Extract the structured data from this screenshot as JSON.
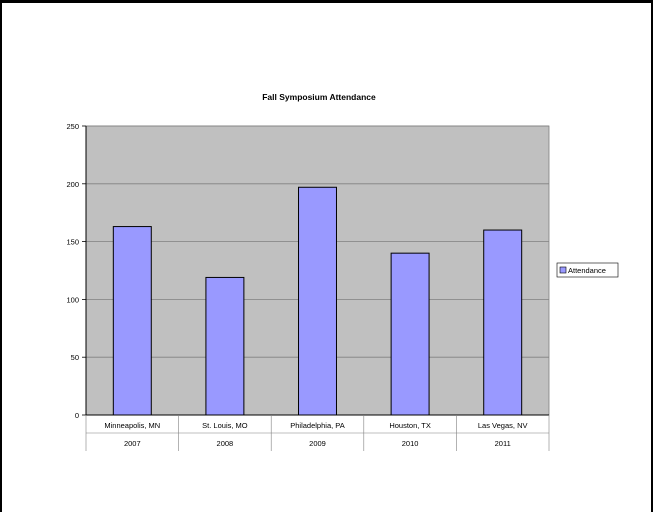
{
  "chart_data": {
    "type": "bar",
    "title": "Fall Symposium Attendance",
    "categories": [
      {
        "location": "Minneapolis, MN",
        "year": "2007"
      },
      {
        "location": "St. Louis, MO",
        "year": "2008"
      },
      {
        "location": "Philadelphia, PA",
        "year": "2009"
      },
      {
        "location": "Houston, TX",
        "year": "2010"
      },
      {
        "location": "Las Vegas, NV",
        "year": "2011"
      }
    ],
    "series": [
      {
        "name": "Attendance",
        "values": [
          163,
          119,
          197,
          140,
          160
        ]
      }
    ],
    "ylim": [
      0,
      250
    ],
    "yticks": [
      0,
      50,
      100,
      150,
      200,
      250
    ],
    "grid": true,
    "legend_position": "right",
    "colors": {
      "bar_fill": "#9999FF",
      "bar_stroke": "#000000",
      "plot_bg": "#C0C0C0",
      "grid": "#808080",
      "axis": "#000000"
    }
  }
}
